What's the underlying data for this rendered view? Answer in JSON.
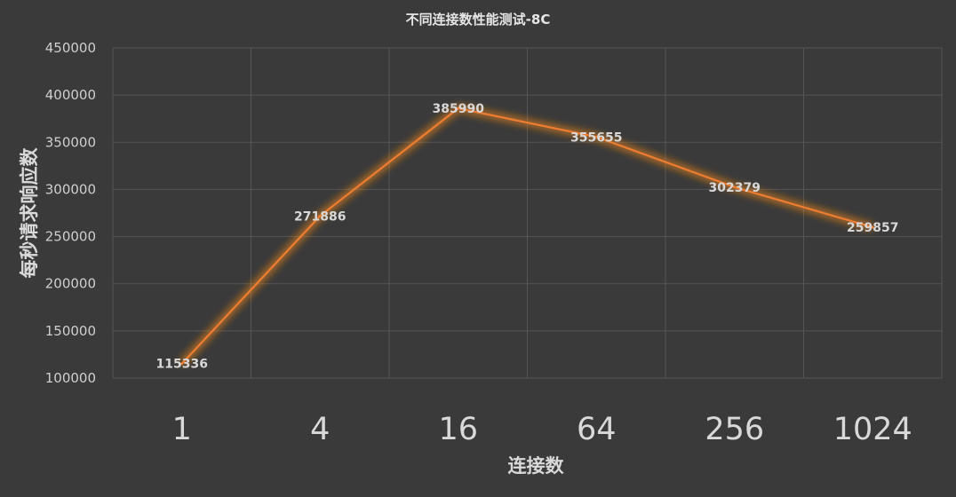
{
  "chart_data": {
    "type": "line",
    "title": "不同连接数性能测试-8C",
    "xlabel": "连接数",
    "ylabel": "每秒请求响应数",
    "categories": [
      "1",
      "4",
      "16",
      "64",
      "256",
      "1024"
    ],
    "series": [
      {
        "values": [
          115336,
          271886,
          385990,
          355655,
          302379,
          259857
        ]
      }
    ],
    "data_labels": [
      "115336",
      "271886",
      "385990",
      "355655",
      "302379",
      "259857"
    ],
    "ylim": [
      100000,
      450000
    ],
    "yticks": [
      "100000",
      "150000",
      "200000",
      "250000",
      "300000",
      "350000",
      "400000",
      "450000"
    ],
    "grid": true,
    "colors": {
      "background": "#3a3a3a",
      "line": "#ed7d31",
      "glow": "#ff8c1a"
    }
  }
}
